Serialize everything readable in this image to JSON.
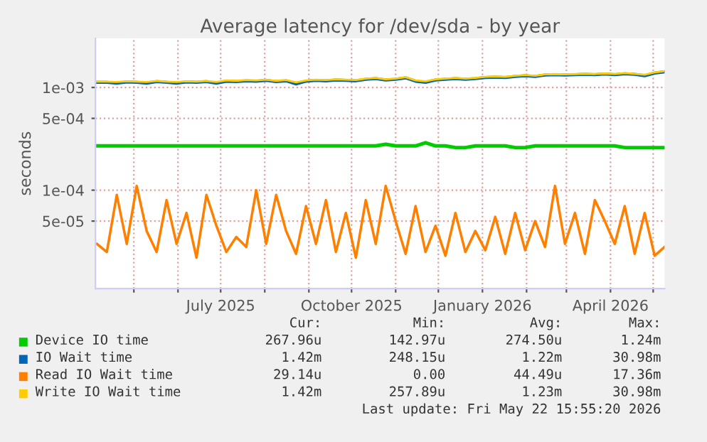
{
  "chart_data": {
    "type": "line",
    "title": "Average latency for /dev/sda - by year",
    "ylabel": "seconds",
    "log": "y",
    "grid": true,
    "legend": "bottom",
    "marker": "none",
    "line_style": "solid",
    "ylim": [
      1.1e-05,
      0.003
    ],
    "yticks": [
      {
        "value": 5e-05,
        "label": "5e-05"
      },
      {
        "value": 0.0001,
        "label": "1e-04"
      },
      {
        "value": 0.0005,
        "label": "5e-04"
      },
      {
        "value": 0.001,
        "label": "1e-03"
      }
    ],
    "xlim": [
      "2025-04-04",
      "2026-05-09"
    ],
    "xticks": [
      {
        "value": "2025-05-01",
        "label": null
      },
      {
        "value": "2025-06-01",
        "label": null
      },
      {
        "value": "2025-07-01",
        "label": "July 2025"
      },
      {
        "value": "2025-08-01",
        "label": null
      },
      {
        "value": "2025-09-01",
        "label": null
      },
      {
        "value": "2025-10-01",
        "label": "October 2025"
      },
      {
        "value": "2025-11-01",
        "label": null
      },
      {
        "value": "2025-12-01",
        "label": null
      },
      {
        "value": "2026-01-01",
        "label": "January 2026"
      },
      {
        "value": "2026-02-01",
        "label": null
      },
      {
        "value": "2026-03-01",
        "label": null
      },
      {
        "value": "2026-04-01",
        "label": "April 2026"
      },
      {
        "value": "2026-05-01",
        "label": null
      }
    ],
    "x": [
      "2025-04-05",
      "2025-04-12",
      "2025-04-19",
      "2025-04-26",
      "2025-05-03",
      "2025-05-10",
      "2025-05-17",
      "2025-05-24",
      "2025-05-31",
      "2025-06-07",
      "2025-06-14",
      "2025-06-21",
      "2025-06-28",
      "2025-07-05",
      "2025-07-12",
      "2025-07-19",
      "2025-07-26",
      "2025-08-02",
      "2025-08-09",
      "2025-08-16",
      "2025-08-23",
      "2025-08-30",
      "2025-09-06",
      "2025-09-13",
      "2025-09-20",
      "2025-09-27",
      "2025-10-04",
      "2025-10-11",
      "2025-10-18",
      "2025-10-25",
      "2025-11-01",
      "2025-11-08",
      "2025-11-15",
      "2025-11-22",
      "2025-11-29",
      "2025-12-06",
      "2025-12-13",
      "2025-12-20",
      "2025-12-27",
      "2026-01-03",
      "2026-01-10",
      "2026-01-17",
      "2026-01-24",
      "2026-01-31",
      "2026-02-07",
      "2026-02-14",
      "2026-02-21",
      "2026-02-28",
      "2026-03-07",
      "2026-03-14",
      "2026-03-21",
      "2026-03-28",
      "2026-04-04",
      "2026-04-11",
      "2026-04-18",
      "2026-04-25",
      "2026-05-02",
      "2026-05-09"
    ],
    "series": [
      {
        "name": "Device IO time",
        "color": "#00cc00",
        "values": [
          0.00027,
          0.00027,
          0.00027,
          0.00027,
          0.00027,
          0.00027,
          0.00027,
          0.00027,
          0.00027,
          0.00027,
          0.00027,
          0.00027,
          0.00027,
          0.00027,
          0.00027,
          0.00027,
          0.00027,
          0.00027,
          0.00027,
          0.00027,
          0.00027,
          0.00027,
          0.00027,
          0.00027,
          0.00027,
          0.00027,
          0.00027,
          0.00027,
          0.00027,
          0.00028,
          0.00027,
          0.00027,
          0.00027,
          0.00029,
          0.00027,
          0.00027,
          0.00026,
          0.00026,
          0.00027,
          0.00027,
          0.00027,
          0.00027,
          0.00026,
          0.00026,
          0.00027,
          0.00027,
          0.00027,
          0.00027,
          0.00027,
          0.00027,
          0.00027,
          0.00027,
          0.00027,
          0.00026,
          0.00026,
          0.00026,
          0.00026,
          0.00026
        ]
      },
      {
        "name": "IO Wait time",
        "color": "#0066b3",
        "values": [
          0.00112,
          0.00112,
          0.0011,
          0.00113,
          0.00112,
          0.0011,
          0.00114,
          0.00112,
          0.0011,
          0.00113,
          0.00112,
          0.00114,
          0.0011,
          0.00115,
          0.00114,
          0.00116,
          0.00115,
          0.00117,
          0.00114,
          0.00116,
          0.00108,
          0.00115,
          0.00117,
          0.00116,
          0.00118,
          0.00117,
          0.00116,
          0.0012,
          0.00122,
          0.00118,
          0.0012,
          0.00124,
          0.00115,
          0.00112,
          0.00118,
          0.0012,
          0.00122,
          0.0012,
          0.00122,
          0.00125,
          0.00126,
          0.00125,
          0.00128,
          0.0013,
          0.00128,
          0.00132,
          0.00133,
          0.00132,
          0.00133,
          0.00134,
          0.00133,
          0.00135,
          0.00133,
          0.00136,
          0.00134,
          0.0013,
          0.00138,
          0.00142
        ]
      },
      {
        "name": "Read IO Wait time",
        "color": "#ff8000",
        "values": [
          3e-05,
          2.5e-05,
          9e-05,
          3e-05,
          0.00011,
          4e-05,
          2.5e-05,
          8e-05,
          3e-05,
          6e-05,
          2.2e-05,
          9e-05,
          4.5e-05,
          2.5e-05,
          3.5e-05,
          2.8e-05,
          0.0001,
          3e-05,
          9e-05,
          4e-05,
          2.4e-05,
          7e-05,
          3e-05,
          8e-05,
          2.5e-05,
          6e-05,
          2.2e-05,
          8e-05,
          3e-05,
          0.00011,
          5e-05,
          2.4e-05,
          7e-05,
          2.5e-05,
          4.5e-05,
          2.3e-05,
          6e-05,
          2.5e-05,
          4e-05,
          2.6e-05,
          5.5e-05,
          2.4e-05,
          6e-05,
          2.6e-05,
          5e-05,
          2.8e-05,
          0.00011,
          3e-05,
          6e-05,
          2.4e-05,
          8e-05,
          5e-05,
          3e-05,
          7e-05,
          2.4e-05,
          6e-05,
          2.3e-05,
          2.8e-05
        ]
      },
      {
        "name": "Write IO Wait time",
        "color": "#ffcc00",
        "values": [
          0.00114,
          0.00114,
          0.00113,
          0.00115,
          0.00114,
          0.00113,
          0.00116,
          0.00114,
          0.00113,
          0.00115,
          0.00114,
          0.00116,
          0.00113,
          0.00117,
          0.00116,
          0.00118,
          0.00117,
          0.00119,
          0.00116,
          0.00118,
          0.00112,
          0.00117,
          0.00119,
          0.00118,
          0.0012,
          0.00119,
          0.00118,
          0.00122,
          0.00124,
          0.0012,
          0.00122,
          0.00126,
          0.00117,
          0.00115,
          0.0012,
          0.00122,
          0.00124,
          0.00122,
          0.00124,
          0.00127,
          0.00128,
          0.00127,
          0.0013,
          0.00132,
          0.0013,
          0.00134,
          0.00135,
          0.00134,
          0.00135,
          0.00136,
          0.00135,
          0.00137,
          0.00135,
          0.00138,
          0.00136,
          0.00133,
          0.0014,
          0.00144
        ]
      }
    ],
    "annotations": [
      "Cur:",
      "Min:",
      "Avg:",
      "Max:",
      "267.96u",
      "142.97u",
      "274.50u",
      "1.24m",
      "1.42m",
      "248.15u",
      "1.22m",
      "30.98m",
      "29.14u",
      "0.00",
      "44.49u",
      "17.36m",
      "1.42m",
      "257.89u",
      "1.23m",
      "30.98m",
      "Last update: Fri May 22 15:55:20 2026"
    ]
  }
}
